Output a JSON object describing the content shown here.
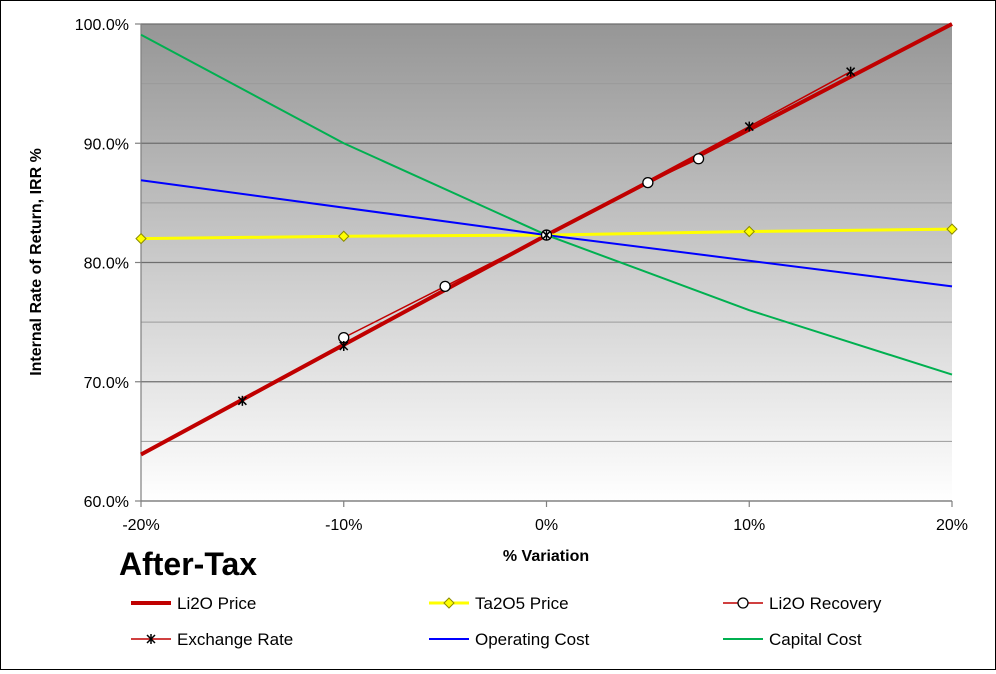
{
  "chart_data": {
    "type": "line",
    "title": "",
    "xlabel": "% Variation",
    "ylabel": "Internal Rate of Return, IRR %",
    "overlay_text": "After-Tax",
    "xlim": [
      -20,
      20
    ],
    "ylim": [
      60,
      100
    ],
    "x_ticks": [
      -20,
      -10,
      0,
      10,
      20
    ],
    "x_tick_labels": [
      "-20%",
      "-10%",
      "0%",
      "10%",
      "20%"
    ],
    "y_ticks": [
      60,
      70,
      80,
      90,
      100
    ],
    "y_tick_labels": [
      "60.0%",
      "70.0%",
      "80.0%",
      "90.0%",
      "100.0%"
    ],
    "y_minor_gridlines": [
      65,
      75,
      85,
      95
    ],
    "legend_position": "bottom",
    "series": [
      {
        "name": "Li2O Price",
        "color": "#c00000",
        "marker": "none",
        "width": 4,
        "points": [
          [
            -20,
            63.9
          ],
          [
            0,
            82.3
          ],
          [
            20,
            100.0
          ]
        ]
      },
      {
        "name": "Ta2O5 Price",
        "color": "#ffff00",
        "marker": "diamond",
        "width": 3,
        "points": [
          [
            -20,
            82.0
          ],
          [
            -10,
            82.2
          ],
          [
            0,
            82.3
          ],
          [
            10,
            82.6
          ],
          [
            20,
            82.8
          ]
        ]
      },
      {
        "name": "Li2O Recovery",
        "color": "#c00000",
        "marker": "circle",
        "width": 1.5,
        "points": [
          [
            -10,
            73.7
          ],
          [
            -5,
            78.0
          ],
          [
            0,
            82.3
          ],
          [
            5,
            86.7
          ],
          [
            7.5,
            88.7
          ]
        ]
      },
      {
        "name": "Exchange Rate",
        "color": "#c00000",
        "marker": "star",
        "width": 1.5,
        "points": [
          [
            -15,
            68.4
          ],
          [
            -10,
            73.0
          ],
          [
            0,
            82.3
          ],
          [
            10,
            91.4
          ],
          [
            15,
            96.0
          ]
        ]
      },
      {
        "name": "Operating Cost",
        "color": "#0000ff",
        "marker": "none",
        "width": 2,
        "points": [
          [
            -20,
            86.9
          ],
          [
            0,
            82.3
          ],
          [
            20,
            78.0
          ]
        ]
      },
      {
        "name": "Capital Cost",
        "color": "#00b050",
        "marker": "none",
        "width": 2,
        "points": [
          [
            -20,
            99.1
          ],
          [
            -10,
            90.0
          ],
          [
            0,
            82.3
          ],
          [
            10,
            76.0
          ],
          [
            20,
            70.6
          ]
        ]
      }
    ]
  }
}
